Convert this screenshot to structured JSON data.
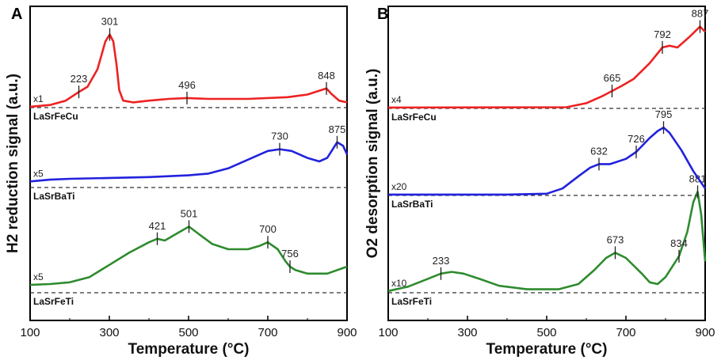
{
  "chart_data": [
    {
      "type": "line",
      "panel_label": "A",
      "xlabel": "Temperature (°C)",
      "ylabel": "H2 reduction signal (a.u.)",
      "xlim": [
        100,
        900
      ],
      "xticks": [
        100,
        300,
        500,
        700,
        900
      ],
      "series": [
        {
          "name": "LaSrFeTi",
          "color": "#2e8b2e",
          "multiplier": "x5",
          "offset": 6.8,
          "points": [
            [
              100,
              0.45
            ],
            [
              150,
              0.5
            ],
            [
              200,
              0.6
            ],
            [
              250,
              0.9
            ],
            [
              300,
              1.6
            ],
            [
              350,
              2.3
            ],
            [
              400,
              2.9
            ],
            [
              421,
              3.1
            ],
            [
              440,
              3.0
            ],
            [
              470,
              3.4
            ],
            [
              501,
              3.8
            ],
            [
              530,
              3.3
            ],
            [
              560,
              2.8
            ],
            [
              600,
              2.5
            ],
            [
              650,
              2.5
            ],
            [
              680,
              2.7
            ],
            [
              700,
              2.9
            ],
            [
              725,
              2.5
            ],
            [
              745,
              1.8
            ],
            [
              756,
              1.5
            ],
            [
              770,
              1.3
            ],
            [
              800,
              1.1
            ],
            [
              850,
              1.1
            ],
            [
              900,
              1.5
            ]
          ],
          "peaks": [
            421,
            501,
            700,
            756
          ]
        },
        {
          "name": "LaSrBaTi",
          "color": "#2222dd",
          "multiplier": "x5",
          "offset": 3.6,
          "points": [
            [
              100,
              0.35
            ],
            [
              150,
              0.45
            ],
            [
              200,
              0.5
            ],
            [
              300,
              0.55
            ],
            [
              400,
              0.6
            ],
            [
              500,
              0.7
            ],
            [
              550,
              0.8
            ],
            [
              600,
              1.1
            ],
            [
              650,
              1.6
            ],
            [
              700,
              2.1
            ],
            [
              730,
              2.2
            ],
            [
              760,
              2.1
            ],
            [
              800,
              1.7
            ],
            [
              830,
              1.5
            ],
            [
              850,
              1.7
            ],
            [
              875,
              2.6
            ],
            [
              890,
              2.4
            ],
            [
              900,
              1.9
            ]
          ],
          "peaks": [
            730,
            875
          ]
        },
        {
          "name": "LaSrFeCu",
          "color": "#ee2222",
          "multiplier": "x1",
          "offset": 0,
          "points": [
            [
              100,
              0.05
            ],
            [
              150,
              0.15
            ],
            [
              190,
              0.4
            ],
            [
              223,
              0.9
            ],
            [
              245,
              1.2
            ],
            [
              270,
              2.2
            ],
            [
              290,
              3.8
            ],
            [
              301,
              4.2
            ],
            [
              310,
              3.8
            ],
            [
              318,
              2.5
            ],
            [
              325,
              1.0
            ],
            [
              335,
              0.4
            ],
            [
              360,
              0.3
            ],
            [
              400,
              0.4
            ],
            [
              450,
              0.5
            ],
            [
              496,
              0.55
            ],
            [
              550,
              0.5
            ],
            [
              650,
              0.5
            ],
            [
              750,
              0.6
            ],
            [
              800,
              0.75
            ],
            [
              848,
              1.1
            ],
            [
              860,
              0.8
            ],
            [
              880,
              0.4
            ],
            [
              900,
              0.3
            ]
          ],
          "peaks": [
            223,
            301,
            496,
            848
          ]
        }
      ]
    },
    {
      "type": "line",
      "panel_label": "B",
      "xlabel": "Temperature (°C)",
      "ylabel": "O2 desorption signal (a.u.)",
      "xlim": [
        100,
        900
      ],
      "xticks": [
        100,
        300,
        500,
        700,
        900
      ],
      "series": [
        {
          "name": "LaSrFeTi",
          "color": "#2e8b2e",
          "multiplier": "x10",
          "offset": 7.0,
          "points": [
            [
              100,
              0.1
            ],
            [
              150,
              0.35
            ],
            [
              200,
              0.8
            ],
            [
              233,
              1.1
            ],
            [
              260,
              1.2
            ],
            [
              290,
              1.1
            ],
            [
              330,
              0.8
            ],
            [
              380,
              0.4
            ],
            [
              450,
              0.2
            ],
            [
              530,
              0.2
            ],
            [
              580,
              0.5
            ],
            [
              620,
              1.3
            ],
            [
              650,
              2.0
            ],
            [
              673,
              2.3
            ],
            [
              700,
              2.0
            ],
            [
              740,
              1.1
            ],
            [
              760,
              0.6
            ],
            [
              780,
              0.5
            ],
            [
              800,
              0.9
            ],
            [
              834,
              2.1
            ],
            [
              855,
              3.5
            ],
            [
              870,
              5.2
            ],
            [
              881,
              5.8
            ],
            [
              890,
              4.5
            ],
            [
              900,
              1.8
            ]
          ],
          "peaks": [
            233,
            673,
            834,
            881
          ]
        },
        {
          "name": "LaSrBaTi",
          "color": "#2222dd",
          "multiplier": "x20",
          "offset": 3.4,
          "points": [
            [
              100,
              0.05
            ],
            [
              400,
              0.05
            ],
            [
              500,
              0.1
            ],
            [
              540,
              0.4
            ],
            [
              580,
              1.1
            ],
            [
              610,
              1.6
            ],
            [
              632,
              1.8
            ],
            [
              660,
              1.8
            ],
            [
              700,
              2.1
            ],
            [
              726,
              2.5
            ],
            [
              760,
              3.3
            ],
            [
              780,
              3.7
            ],
            [
              795,
              3.9
            ],
            [
              810,
              3.6
            ],
            [
              840,
              2.6
            ],
            [
              870,
              1.4
            ],
            [
              900,
              0.4
            ]
          ],
          "peaks": [
            632,
            726,
            795
          ]
        },
        {
          "name": "LaSrFeCu",
          "color": "#ee2222",
          "multiplier": "x4",
          "offset": 0,
          "points": [
            [
              100,
              0.05
            ],
            [
              550,
              0.07
            ],
            [
              600,
              0.3
            ],
            [
              640,
              0.7
            ],
            [
              665,
              1.0
            ],
            [
              690,
              1.3
            ],
            [
              720,
              1.7
            ],
            [
              760,
              2.6
            ],
            [
              792,
              3.5
            ],
            [
              810,
              3.6
            ],
            [
              830,
              3.5
            ],
            [
              860,
              4.1
            ],
            [
              887,
              4.7
            ],
            [
              900,
              4.4
            ]
          ],
          "peaks": [
            665,
            792,
            887
          ]
        }
      ]
    }
  ]
}
